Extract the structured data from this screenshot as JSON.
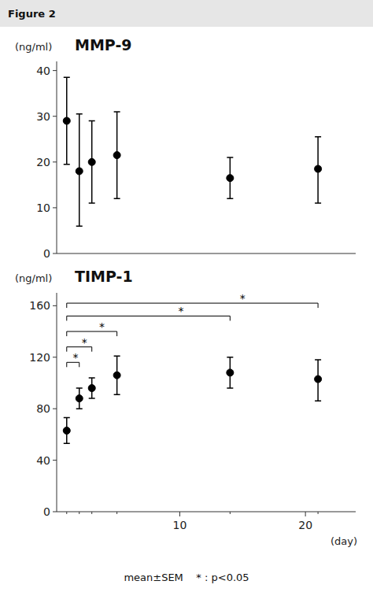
{
  "chart_data": [
    {
      "type": "scatter",
      "title": "MMP-9",
      "y_label": "(ng/ml)",
      "x": [
        1,
        2,
        3,
        5,
        14,
        21
      ],
      "values": [
        29.0,
        18.0,
        20.0,
        21.5,
        16.5,
        18.5
      ],
      "error_lower": [
        9.5,
        12.0,
        9.0,
        9.5,
        4.5,
        7.5
      ],
      "error_upper": [
        9.5,
        12.5,
        9.0,
        9.5,
        4.5,
        7.0
      ],
      "xlim": [
        0.2,
        24
      ],
      "ylim": [
        0,
        42
      ],
      "yticks": [
        0,
        10,
        20,
        30,
        40
      ],
      "color": "black",
      "marker": "circle",
      "grid": false,
      "tick_labels": "y",
      "annotations": [
        "Figure 2"
      ]
    },
    {
      "type": "scatter",
      "title": "TIMP-1",
      "y_label": "(ng/ml)",
      "x_label": "(day)",
      "x": [
        1,
        2,
        3,
        5,
        14,
        21
      ],
      "values": [
        63.0,
        88.0,
        96.0,
        106.0,
        108.0,
        103.0
      ],
      "error_lower": [
        10.0,
        8.0,
        8.0,
        15.0,
        12.0,
        17.0
      ],
      "error_upper": [
        10.0,
        8.0,
        8.0,
        15.0,
        12.0,
        15.0
      ],
      "xlim": [
        0.2,
        24
      ],
      "xticks": [
        10,
        20
      ],
      "ylim": [
        0,
        170
      ],
      "yticks": [
        0,
        40,
        80,
        120,
        160
      ],
      "color": "black",
      "marker": "circle",
      "grid": false,
      "brackets": [
        {
          "x1": 1,
          "x2": 2,
          "y": 116,
          "label": "*"
        },
        {
          "x1": 1,
          "x2": 3,
          "y": 128,
          "label": "*"
        },
        {
          "x1": 1,
          "x2": 5,
          "y": 140,
          "label": "*"
        },
        {
          "x1": 1,
          "x2": 14,
          "y": 152,
          "label": "*"
        },
        {
          "x1": 1,
          "x2": 21,
          "y": 162,
          "label": "*"
        }
      ],
      "annotations": [
        "mean±SEM    * : p<0.05"
      ]
    }
  ]
}
